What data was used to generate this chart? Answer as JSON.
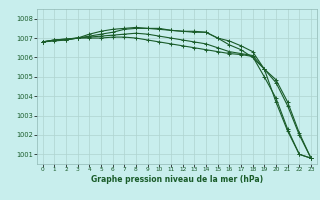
{
  "title": "Graphe pression niveau de la mer (hPa)",
  "background_color": "#c8eeed",
  "grid_color": "#afd4d0",
  "line_color": "#1a5c2a",
  "x_ticks": [
    0,
    1,
    2,
    3,
    4,
    5,
    6,
    7,
    8,
    9,
    10,
    11,
    12,
    13,
    14,
    15,
    16,
    17,
    18,
    19,
    20,
    21,
    22,
    23
  ],
  "ylim": [
    1000.5,
    1008.5
  ],
  "yticks": [
    1001,
    1002,
    1003,
    1004,
    1005,
    1006,
    1007,
    1008
  ],
  "series": [
    [
      1006.8,
      1006.85,
      1006.9,
      1007.0,
      1007.0,
      1007.0,
      1007.05,
      1007.05,
      1007.0,
      1006.9,
      1006.8,
      1006.7,
      1006.6,
      1006.5,
      1006.4,
      1006.3,
      1006.2,
      1006.15,
      1006.05,
      1005.0,
      1003.9,
      1002.3,
      1001.0,
      1000.8
    ],
    [
      1006.8,
      1006.9,
      1006.95,
      1007.0,
      1007.2,
      1007.35,
      1007.45,
      1007.5,
      1007.55,
      1007.5,
      1007.45,
      1007.4,
      1007.35,
      1007.35,
      1007.3,
      1007.0,
      1006.85,
      1006.6,
      1006.3,
      1005.4,
      1003.7,
      1002.2,
      1001.0,
      1000.8
    ],
    [
      1006.8,
      1006.9,
      1006.95,
      1007.0,
      1007.1,
      1007.2,
      1007.3,
      1007.45,
      1007.5,
      1007.5,
      1007.5,
      1007.4,
      1007.35,
      1007.3,
      1007.3,
      1007.0,
      1006.65,
      1006.4,
      1006.0,
      1005.4,
      1004.85,
      1003.7,
      1002.1,
      1000.8
    ],
    [
      1006.8,
      1006.9,
      1006.9,
      1007.0,
      1007.05,
      1007.1,
      1007.15,
      1007.2,
      1007.25,
      1007.2,
      1007.1,
      1007.0,
      1006.9,
      1006.8,
      1006.7,
      1006.5,
      1006.3,
      1006.2,
      1006.1,
      1005.4,
      1004.7,
      1003.5,
      1002.0,
      1000.8
    ]
  ],
  "figsize": [
    3.2,
    2.0
  ],
  "dpi": 100
}
